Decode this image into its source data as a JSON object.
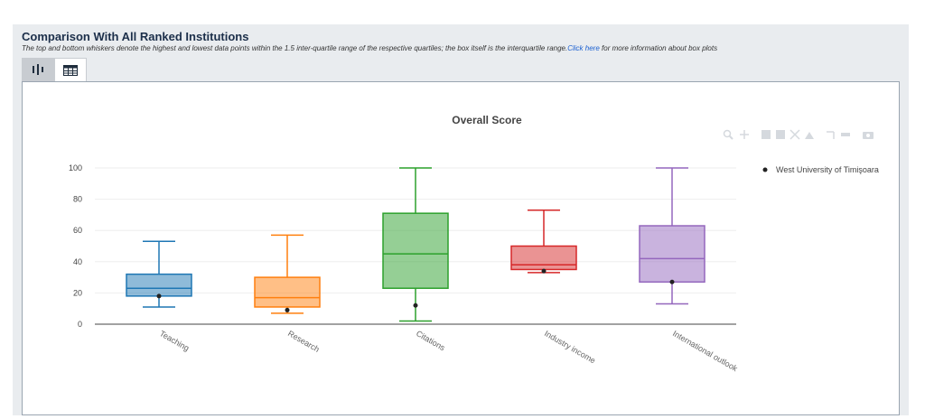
{
  "header": {
    "title": "Comparison With All Ranked Institutions",
    "description_prefix": "The top and bottom whiskers denote the highest and lowest data points within the 1.5 inter-quartile range of the respective quartiles; the box itself is the interquartile range.",
    "link_text": "Click here",
    "description_suffix": " for more information about box plots"
  },
  "tabs": [
    {
      "icon": "box-plot-icon",
      "active": true
    },
    {
      "icon": "table-icon",
      "active": false
    }
  ],
  "modebar_icons": [
    "zoom-icon",
    "pan-icon",
    "zoom-in-icon",
    "zoom-out-icon",
    "autoscale-icon",
    "reset-axes-icon",
    "spike-lines-icon",
    "hover-compare-icon",
    "camera-icon"
  ],
  "chart_data": {
    "type": "box",
    "title": "Overall Score",
    "xlabel": "",
    "ylabel": "",
    "ylim": [
      0,
      100
    ],
    "yticks": [
      0,
      20,
      40,
      60,
      80,
      100
    ],
    "grid": true,
    "legend_position": "top-right",
    "categories": [
      "Teaching",
      "Research",
      "Citations",
      "Industry income",
      "International outlook"
    ],
    "colors": [
      "#1f77b4",
      "#ff7f0e",
      "#2ca02c",
      "#d62728",
      "#9467bd"
    ],
    "boxes": [
      {
        "min": 11,
        "q1": 18,
        "median": 23,
        "q3": 32,
        "max": 53
      },
      {
        "min": 7,
        "q1": 11,
        "median": 17,
        "q3": 30,
        "max": 57
      },
      {
        "min": 2,
        "q1": 23,
        "median": 45,
        "q3": 71,
        "max": 100
      },
      {
        "min": 33,
        "q1": 35,
        "median": 38,
        "q3": 50,
        "max": 73
      },
      {
        "min": 13,
        "q1": 27,
        "median": 42,
        "q3": 63,
        "max": 100
      }
    ],
    "series": [
      {
        "name": "West University of Timişoara",
        "values": [
          18,
          9,
          12,
          34,
          27
        ],
        "color": "#222222"
      }
    ]
  }
}
